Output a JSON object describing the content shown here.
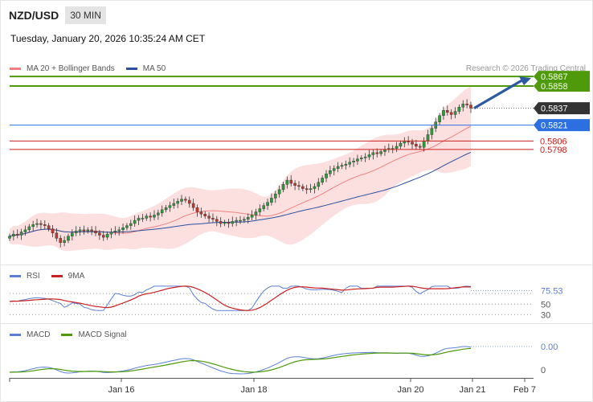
{
  "header": {
    "pair": "NZD/USD",
    "timeframe": "30 MIN",
    "datetime": "Tuesday, January 20, 2026 10:35:24 AM CET"
  },
  "legend": {
    "ma20_label": "MA 20 + Bollinger Bands",
    "ma20_color": "#f08080",
    "ma50_label": "MA 50",
    "ma50_color": "#2b4f9e"
  },
  "source": "Research © 2026 Trading Central",
  "chart_data": [
    {
      "type": "candlestick",
      "x_ticks": [
        "Jan 16",
        "Jan 18",
        "Jan 20",
        "Jan 21",
        "Feb 7"
      ],
      "levels": [
        {
          "value": 0.5867,
          "label": "0.5867",
          "kind": "resistance",
          "color": "#4f9a0a"
        },
        {
          "value": 0.5858,
          "label": "0.5858",
          "kind": "resistance",
          "color": "#4f9a0a"
        },
        {
          "value": 0.5837,
          "label": "0.5837",
          "kind": "last",
          "color": "#333333"
        },
        {
          "value": 0.5821,
          "label": "0.5821",
          "kind": "pivot",
          "color": "#2b6fe0"
        },
        {
          "value": 0.5806,
          "label": "0.5806",
          "kind": "support",
          "color": "#cc1f1f"
        },
        {
          "value": 0.5798,
          "label": "0.5798",
          "kind": "support",
          "color": "#cc1f1f"
        }
      ],
      "close": [
        0.5716,
        0.5718,
        0.5717,
        0.572,
        0.5722,
        0.5725,
        0.5727,
        0.5728,
        0.5727,
        0.5726,
        0.5723,
        0.5719,
        0.5714,
        0.571,
        0.5712,
        0.5716,
        0.5719,
        0.5721,
        0.5722,
        0.5721,
        0.5722,
        0.5721,
        0.5719,
        0.5717,
        0.5715,
        0.5718,
        0.572,
        0.5721,
        0.5722,
        0.5724,
        0.5726,
        0.5728,
        0.5731,
        0.5733,
        0.5733,
        0.5735,
        0.5734,
        0.5736,
        0.5738,
        0.5741,
        0.5743,
        0.5745,
        0.5747,
        0.5749,
        0.5751,
        0.575,
        0.5747,
        0.5743,
        0.5739,
        0.5737,
        0.5735,
        0.5733,
        0.5732,
        0.573,
        0.5728,
        0.5729,
        0.5728,
        0.573,
        0.5731,
        0.5731,
        0.5732,
        0.5734,
        0.5736,
        0.5739,
        0.5742,
        0.5745,
        0.5748,
        0.5752,
        0.5756,
        0.576,
        0.5765,
        0.5769,
        0.5766,
        0.5764,
        0.5763,
        0.5761,
        0.576,
        0.5761,
        0.5763,
        0.5767,
        0.5771,
        0.5775,
        0.5778,
        0.578,
        0.5782,
        0.5783,
        0.5784,
        0.5786,
        0.5787,
        0.5789,
        0.579,
        0.5791,
        0.5793,
        0.5795,
        0.5794,
        0.5796,
        0.5798,
        0.5799,
        0.5799,
        0.5801,
        0.5804,
        0.5806,
        0.5805,
        0.5803,
        0.5801,
        0.58,
        0.5806,
        0.5812,
        0.5818,
        0.5824,
        0.583,
        0.5835,
        0.5833,
        0.5831,
        0.5834,
        0.5838,
        0.5841,
        0.584,
        0.5837
      ],
      "ma20_label": "MA 20 + Bollinger Bands",
      "ma50_label": "MA 50"
    },
    {
      "type": "line",
      "legend": [
        "RSI",
        "9MA"
      ],
      "colors": [
        "#5b7fd6",
        "#cc1f1f"
      ],
      "current_value": "75.53",
      "levels": [
        70,
        50,
        30
      ],
      "level_labels": [
        "75.53",
        "50",
        "30"
      ]
    },
    {
      "type": "line",
      "legend": [
        "MACD",
        "MACD Signal"
      ],
      "colors": [
        "#5b7fd6",
        "#4f9a0a"
      ],
      "current_value": "0.00",
      "zero_label": "0"
    }
  ]
}
